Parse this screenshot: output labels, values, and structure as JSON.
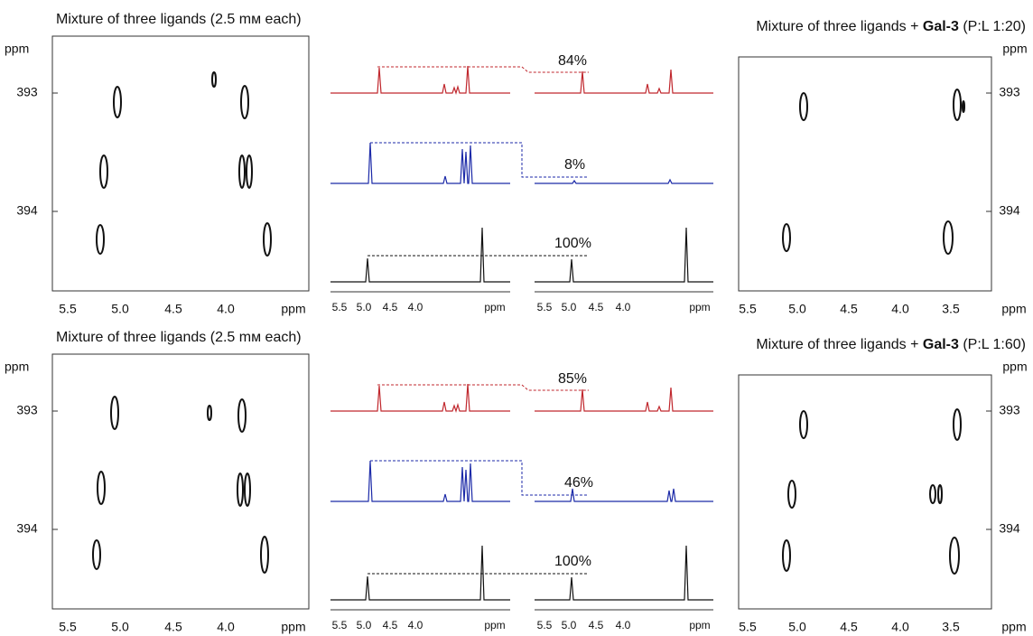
{
  "rows": [
    {
      "left": {
        "title": "Mixture of three ligands (2.5 mᴍ each)",
        "y_unit": "ppm",
        "y_ticks": [
          "393",
          "394"
        ],
        "x_ticks": [
          "5.5",
          "5.0",
          "4.5",
          "4.0",
          "ppm"
        ]
      },
      "middle": {
        "labels": [
          "84%",
          "8%",
          "100%"
        ],
        "x_ticks_left": [
          "5.5",
          "5.0",
          "4.5",
          "4.0",
          "ppm"
        ],
        "x_ticks_right": [
          "5.5",
          "5.0",
          "4.5",
          "4.0",
          "ppm"
        ]
      },
      "right": {
        "title_prefix": "Mixture of three ligands + ",
        "title_bold": "Gal-3",
        "title_suffix": " (P:L 1:20)",
        "y_unit": "ppm",
        "y_ticks": [
          "393",
          "394"
        ],
        "x_ticks": [
          "5.5",
          "5.0",
          "4.5",
          "4.0",
          "3.5",
          "ppm"
        ]
      }
    },
    {
      "left": {
        "title": "Mixture of three ligands (2.5 mᴍ each)",
        "y_unit": "ppm",
        "y_ticks": [
          "393",
          "394"
        ],
        "x_ticks": [
          "5.5",
          "5.0",
          "4.5",
          "4.0",
          "ppm"
        ]
      },
      "middle": {
        "labels": [
          "85%",
          "46%",
          "100%"
        ],
        "x_ticks_left": [
          "5.5",
          "5.0",
          "4.5",
          "4.0",
          "ppm"
        ],
        "x_ticks_right": [
          "5.5",
          "5.0",
          "4.5",
          "4.0",
          "ppm"
        ]
      },
      "right": {
        "title_prefix": "Mixture of three ligands + ",
        "title_bold": "Gal-3",
        "title_suffix": " (P:L 1:60)",
        "y_unit": "ppm",
        "y_ticks": [
          "393",
          "394"
        ],
        "x_ticks": [
          "5.5",
          "5.0",
          "4.5",
          "4.0",
          "3.5",
          "ppm"
        ]
      }
    }
  ]
}
